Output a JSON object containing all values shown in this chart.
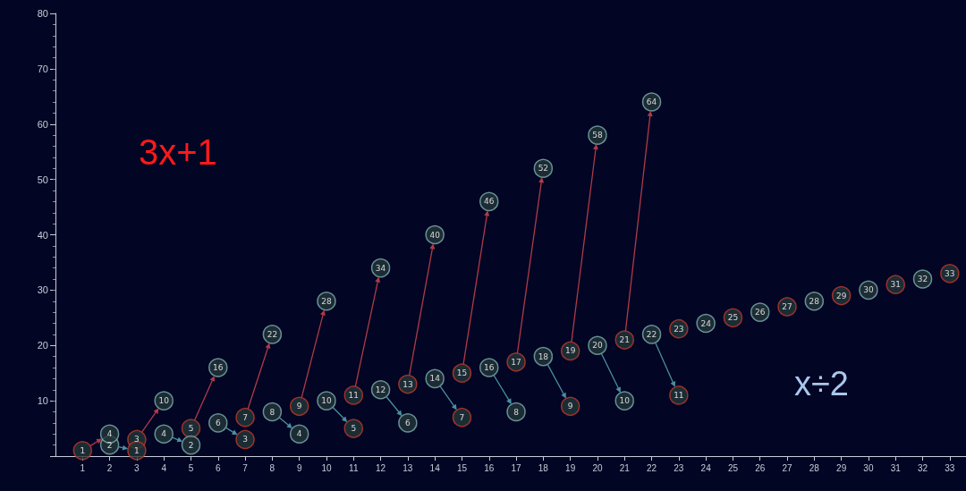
{
  "chart_data": {
    "type": "scatter",
    "marker": "circle",
    "data_labels": true,
    "grid": false,
    "annotations": [
      "3x+1",
      "x÷2"
    ],
    "xlim": [
      0,
      33.6
    ],
    "xticks": [
      1,
      2,
      3,
      4,
      5,
      6,
      7,
      8,
      9,
      10,
      11,
      12,
      13,
      14,
      15,
      16,
      17,
      18,
      19,
      20,
      21,
      22,
      23,
      24,
      25,
      26,
      27,
      28,
      29,
      30,
      31,
      32,
      33
    ],
    "ylim": [
      0,
      80
    ],
    "yticks": [
      {
        "value": 0,
        "label": null
      },
      10,
      20,
      30,
      40,
      50,
      60,
      70,
      80
    ],
    "series": [
      {
        "x": [
          1,
          2,
          3,
          4,
          5,
          6,
          7,
          8,
          9,
          10,
          11,
          12,
          13,
          14,
          15,
          16,
          17,
          18,
          19,
          20,
          21,
          22,
          23,
          24,
          25,
          26,
          27,
          28,
          29,
          30,
          31,
          32,
          33
        ],
        "values": [
          1,
          2,
          3,
          4,
          5,
          6,
          7,
          8,
          9,
          10,
          11,
          12,
          13,
          14,
          15,
          16,
          17,
          18,
          19,
          20,
          21,
          22,
          23,
          24,
          25,
          26,
          27,
          28,
          29,
          30,
          31,
          32,
          33
        ],
        "colors": [
          "#c0392b",
          "#7fb0b0",
          "#c0392b",
          "#7fb0b0",
          "#c0392b",
          "#7fb0b0",
          "#c0392b",
          "#7fb0b0",
          "#c0392b",
          "#7fb0b0",
          "#c0392b",
          "#7fb0b0",
          "#c0392b",
          "#7fb0b0",
          "#c0392b",
          "#7fb0b0",
          "#c0392b",
          "#7fb0b0",
          "#c0392b",
          "#7fb0b0",
          "#c0392b",
          "#7fb0b0",
          "#c0392b",
          "#7fb0b0",
          "#c0392b",
          "#7fb0b0",
          "#c0392b",
          "#7fb0b0",
          "#c0392b",
          "#7fb0b0",
          "#c0392b",
          "#7fb0b0",
          "#c0392b"
        ]
      },
      {
        "color": "#7fb0b0",
        "x": [
          2,
          4,
          6,
          8,
          10,
          12,
          14,
          16,
          18,
          20,
          22
        ],
        "values": [
          4,
          10,
          16,
          22,
          28,
          34,
          40,
          46,
          52,
          58,
          64
        ]
      },
      {
        "x": [
          3,
          5,
          7,
          9,
          11,
          13,
          15,
          17,
          19,
          21,
          23
        ],
        "values": [
          1,
          2,
          3,
          4,
          5,
          6,
          7,
          8,
          9,
          10,
          11
        ],
        "colors": [
          "#c0392b",
          "#7fb0b0",
          "#c0392b",
          "#7fb0b0",
          "#c0392b",
          "#7fb0b0",
          "#c0392b",
          "#7fb0b0",
          "#c0392b",
          "#7fb0b0",
          "#c0392b"
        ]
      }
    ]
  }
}
